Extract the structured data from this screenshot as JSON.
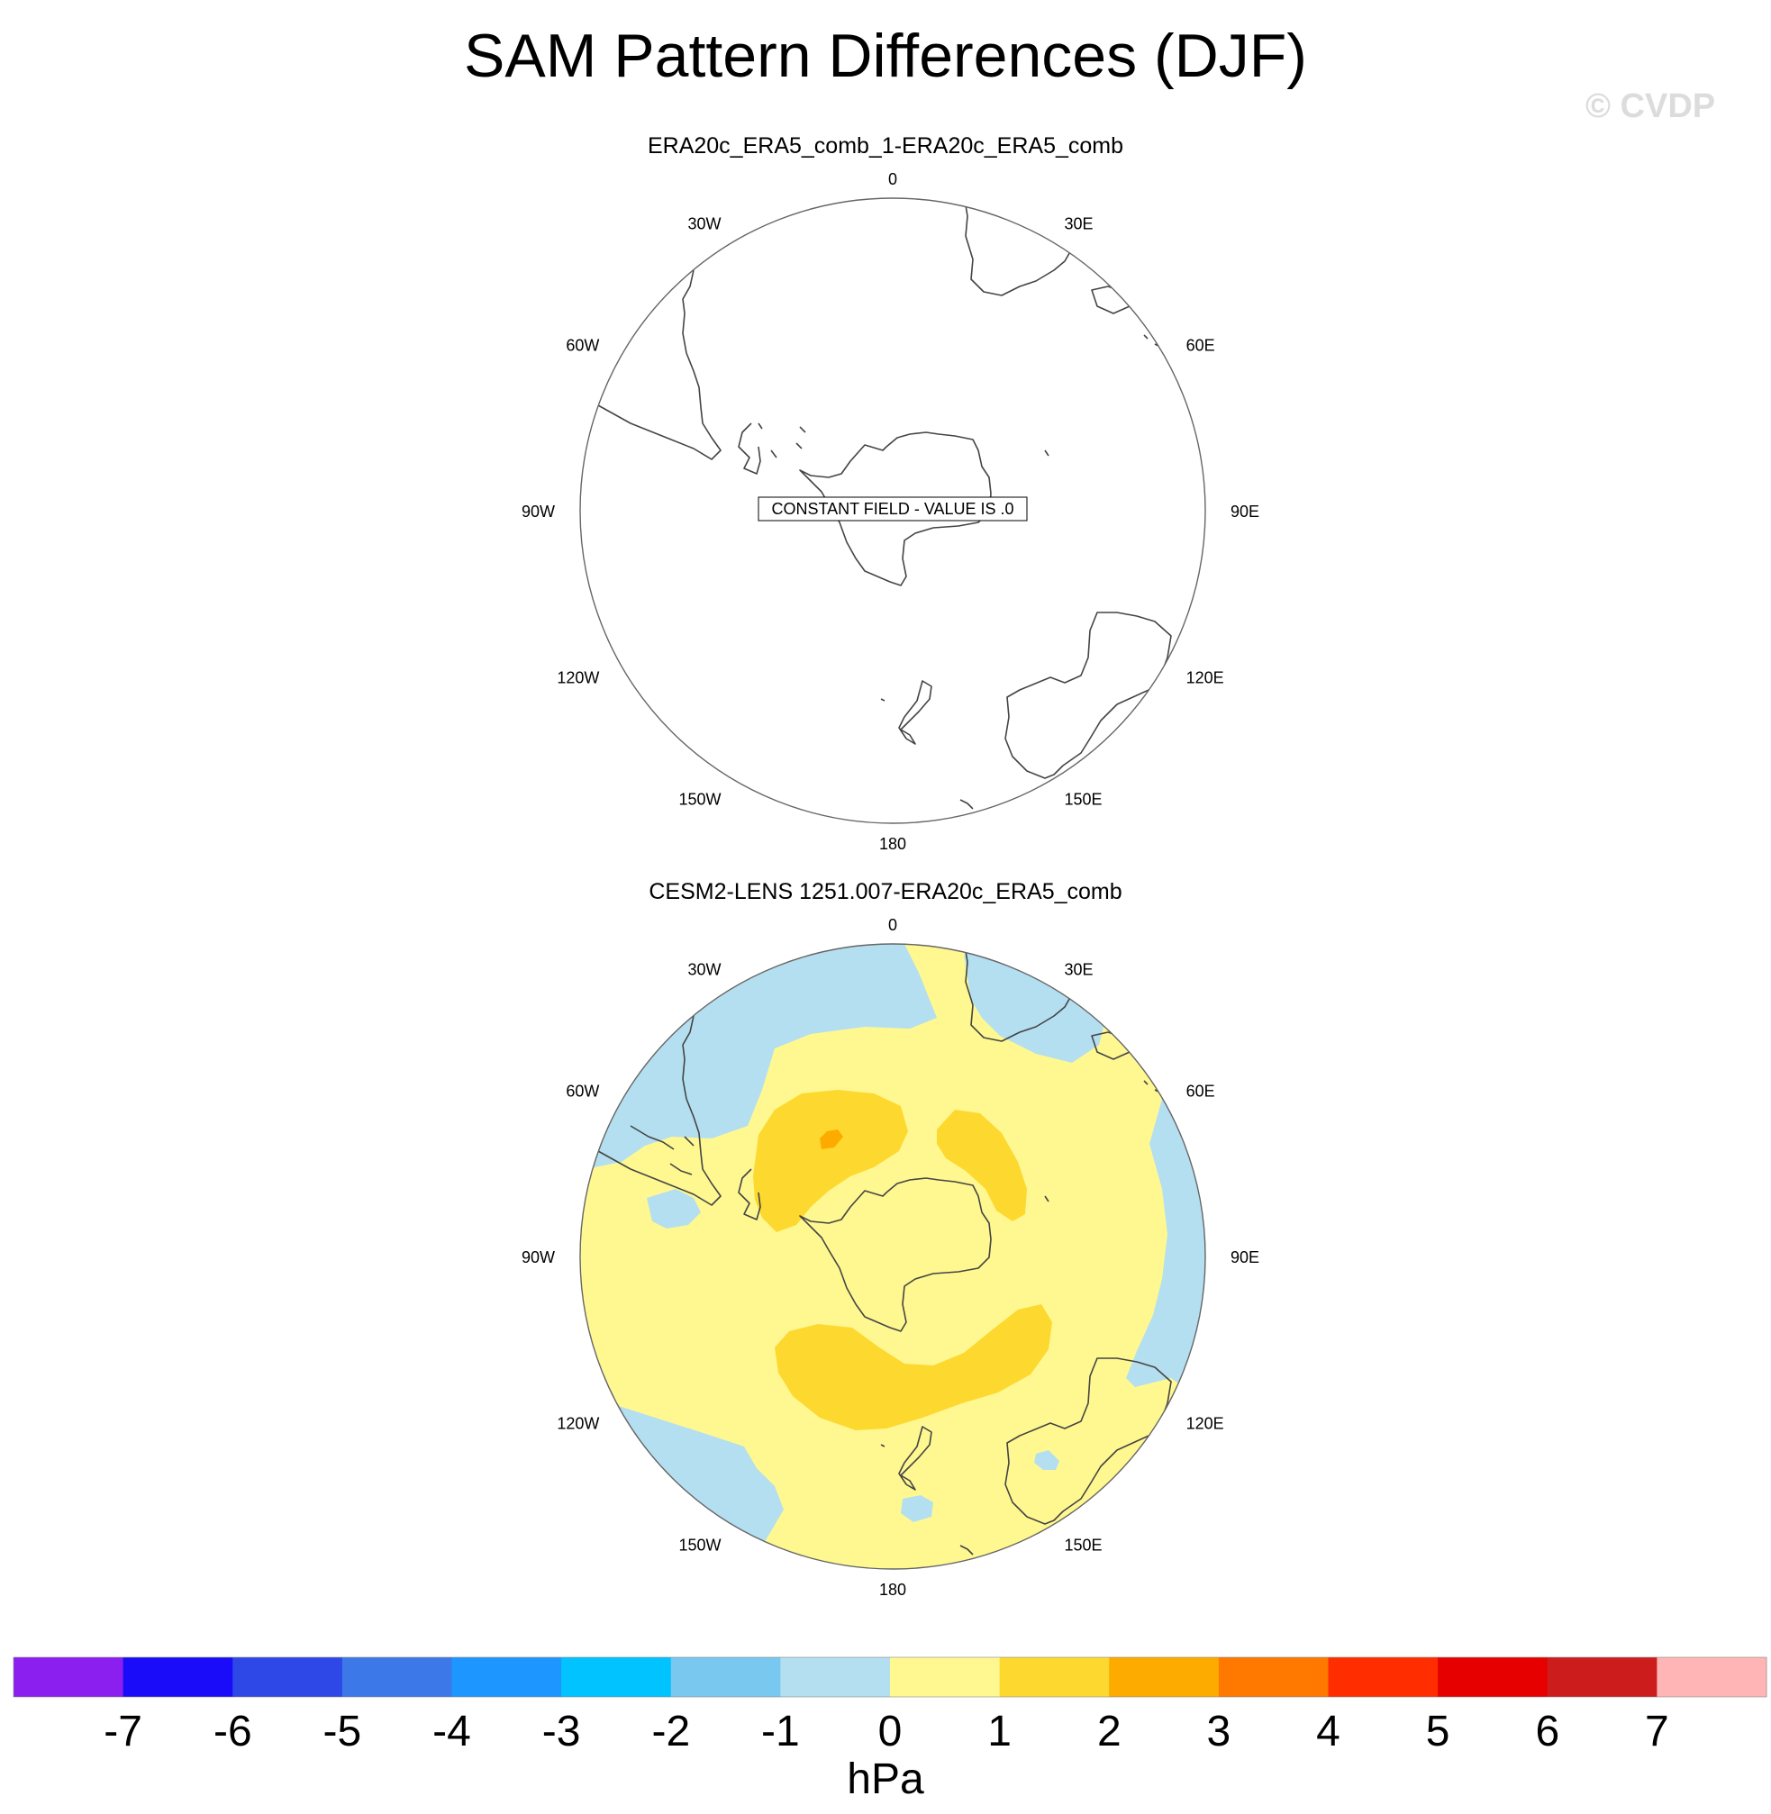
{
  "title": "SAM Pattern Differences (DJF)",
  "watermark": "© CVDP",
  "panels": [
    {
      "subtitle": "ERA20c_ERA5_comb_1-ERA20c_ERA5_comb",
      "annotation": "CONSTANT FIELD - VALUE IS .0",
      "field": "constant",
      "value": 0
    },
    {
      "subtitle": "CESM2-LENS 1251.007-ERA20c_ERA5_comb",
      "field": "contoured",
      "regions": [
        {
          "range": "0 to 1",
          "color": "#fff891",
          "description": "background, dominant"
        },
        {
          "range": "-1 to 0",
          "color": "#b4dff0",
          "description": "Atlantic sector north of Weddell Sea"
        },
        {
          "range": "-1 to 0",
          "color": "#b4dff0",
          "description": "Indian Ocean near 60E-90E"
        },
        {
          "range": "-1 to 0",
          "color": "#b4dff0",
          "description": "South Pacific near 120W-150W"
        },
        {
          "range": "-1 to 0",
          "color": "#b4dff0",
          "description": "small patches near New Zealand / Tasmania / Chile"
        },
        {
          "range": "1 to 2",
          "color": "#fdd82f",
          "description": "lobe over Drake Passage / Bellingshausen Sea"
        },
        {
          "range": "1 to 2",
          "color": "#fdd82f",
          "description": "lobe over Indian Ocean sector near 45E-75E"
        },
        {
          "range": "1 to 2",
          "color": "#fdd82f",
          "description": "arc over Ross Sea / Pacific sector"
        },
        {
          "range": "2 to 3",
          "color": "#feab00",
          "description": "small core south of South America"
        }
      ]
    }
  ],
  "lon_labels": [
    "0",
    "30E",
    "60E",
    "90E",
    "120E",
    "150E",
    "180",
    "150W",
    "120W",
    "90W",
    "60W",
    "30W"
  ],
  "colorbar": {
    "colors": [
      "#8a1ff0",
      "#1a0cf8",
      "#2e48e8",
      "#3c78e8",
      "#1e96ff",
      "#00c3ff",
      "#78c8f0",
      "#b4dff0",
      "#fff891",
      "#fdd82f",
      "#feab00",
      "#ff7800",
      "#ff2d00",
      "#e60000",
      "#cc1c1c",
      "#ffb5b5"
    ],
    "labels": [
      "-7",
      "-6",
      "-5",
      "-4",
      "-3",
      "-2",
      "-1",
      "0",
      "1",
      "2",
      "3",
      "4",
      "5",
      "6",
      "7"
    ],
    "units": "hPa"
  }
}
